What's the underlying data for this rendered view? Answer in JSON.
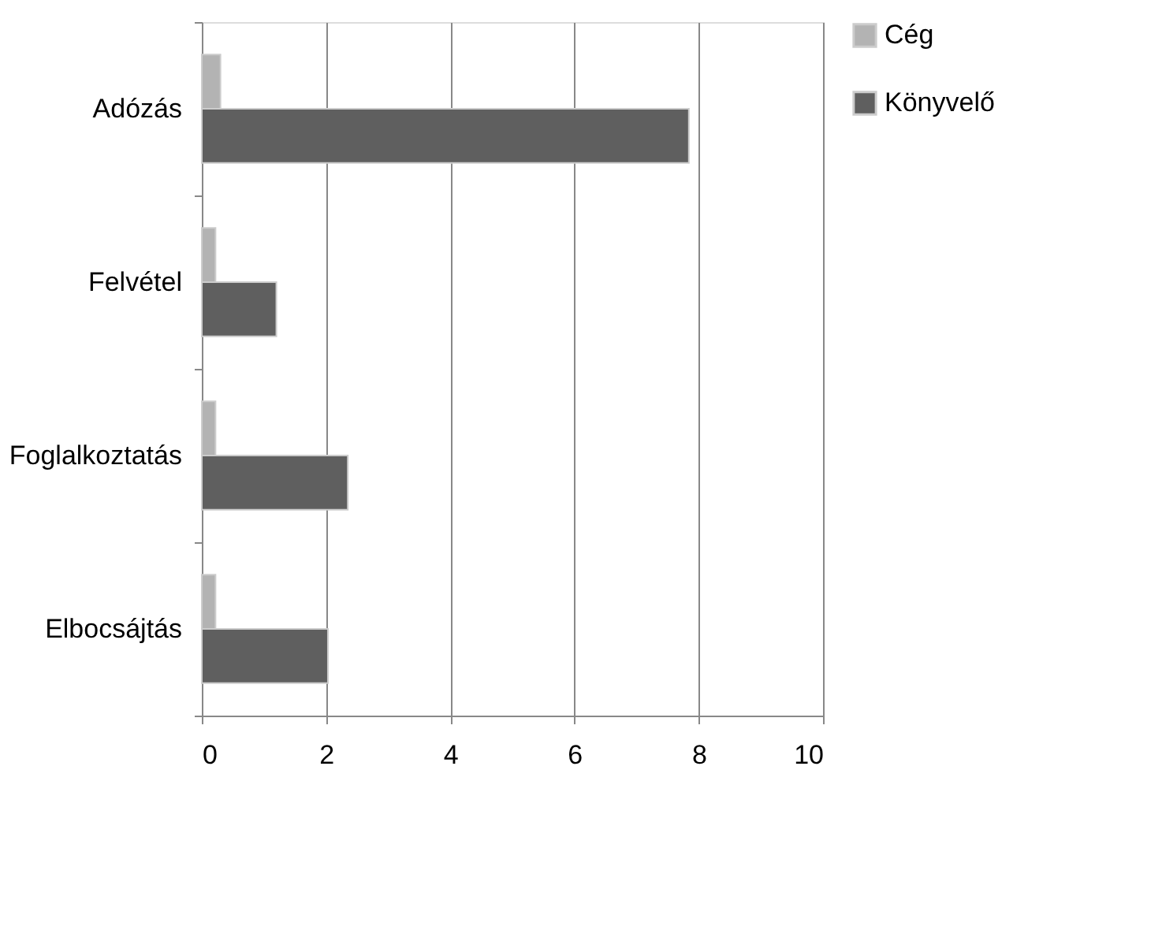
{
  "chart_data": {
    "type": "bar",
    "orientation": "horizontal",
    "categories": [
      "Adózás",
      "Felvétel",
      "Foglalkoztatás",
      "Elbocsájtás"
    ],
    "series": [
      {
        "name": "Cég",
        "color": "#b3b3b3",
        "values": [
          0.3,
          0.22,
          0.22,
          0.22
        ]
      },
      {
        "name": "Könyvelő",
        "color": "#5f5f5f",
        "values": [
          7.84,
          1.2,
          2.35,
          2.03
        ]
      }
    ],
    "xlim": [
      0,
      10
    ],
    "xticks": [
      0,
      2,
      4,
      6,
      8,
      10
    ],
    "grid": "x",
    "legend": "right"
  }
}
